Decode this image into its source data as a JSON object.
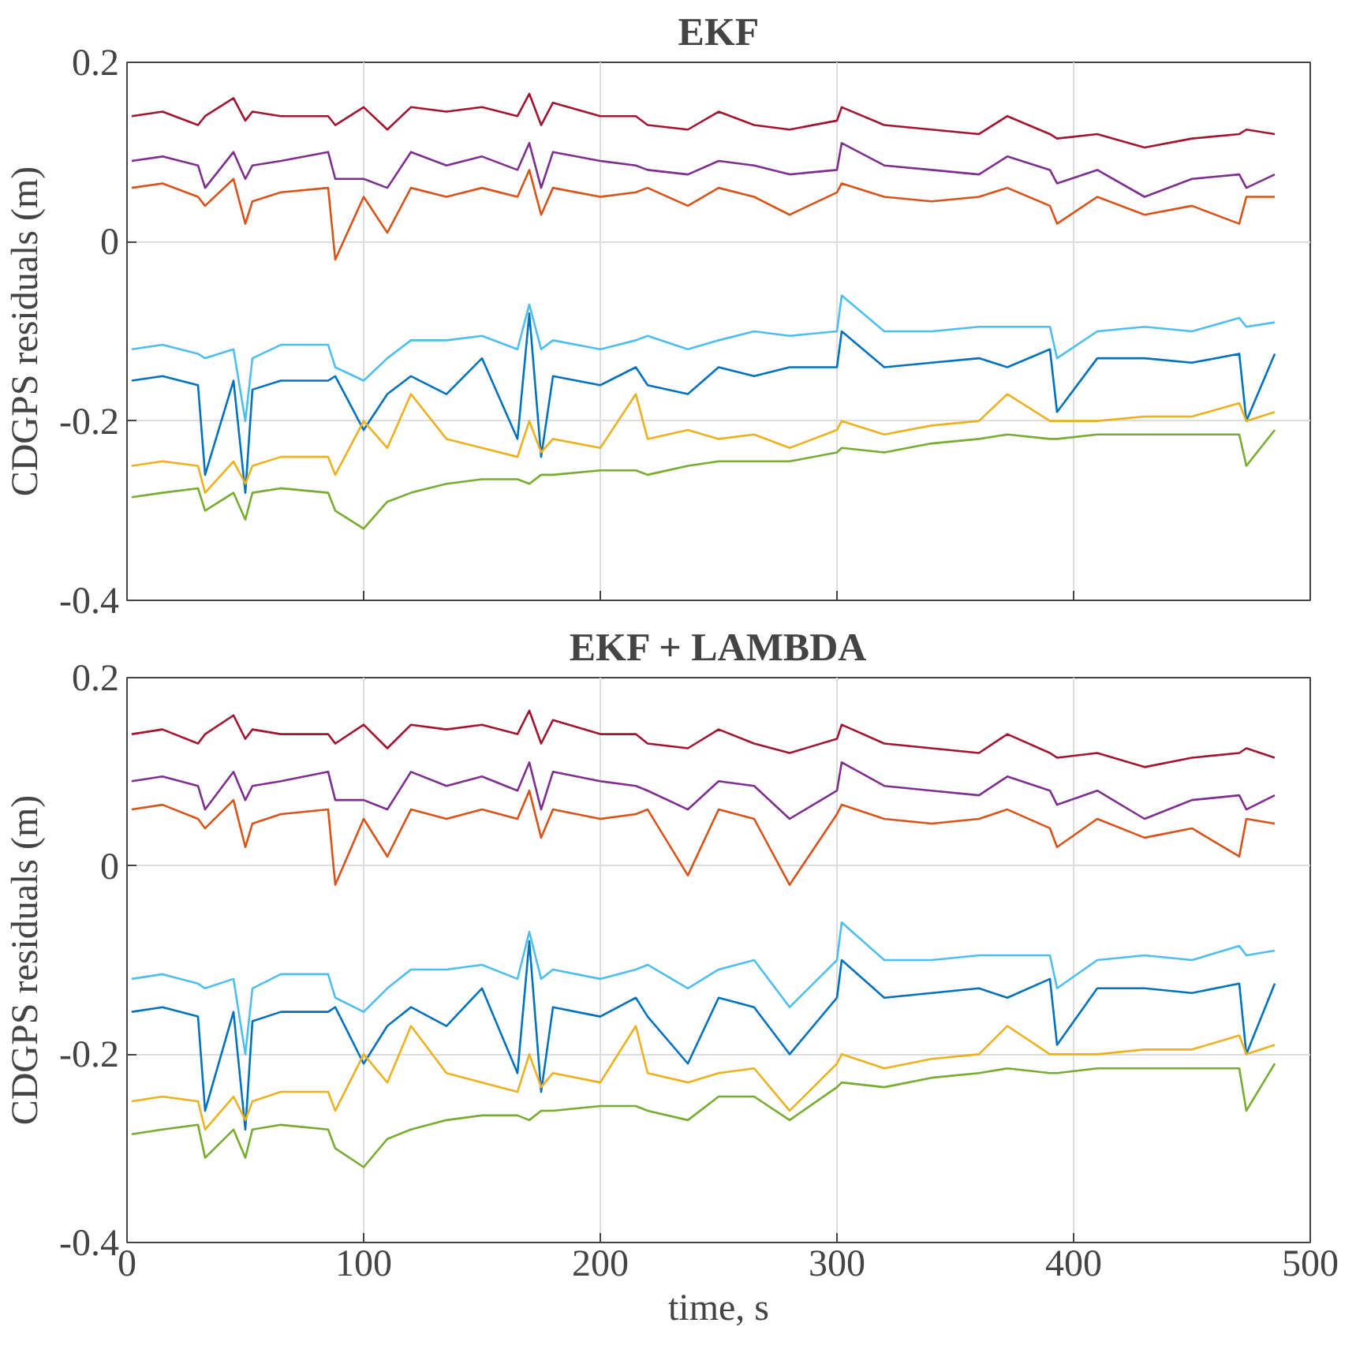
{
  "chart_data": [
    {
      "type": "line",
      "title": "EKF",
      "ylabel": "CDGPS residuals (m)",
      "xlim": [
        0,
        500
      ],
      "xticks": [
        0,
        100,
        200,
        300,
        400,
        500
      ],
      "ylim": [
        -0.4,
        0.2
      ],
      "yticks": [
        -0.4,
        -0.2,
        0,
        0.2
      ],
      "grid": true,
      "tick_labels": "y",
      "x": [
        2,
        15,
        30,
        33,
        45,
        50,
        53,
        65,
        85,
        88,
        100,
        110,
        120,
        135,
        150,
        165,
        170,
        175,
        180,
        200,
        215,
        220,
        237,
        250,
        265,
        280,
        300,
        302,
        320,
        340,
        360,
        372,
        390,
        393,
        410,
        430,
        450,
        470,
        473,
        485
      ],
      "series": [
        {
          "color": "#a2142f",
          "values": [
            0.14,
            0.145,
            0.13,
            0.14,
            0.16,
            0.135,
            0.145,
            0.14,
            0.14,
            0.13,
            0.15,
            0.125,
            0.15,
            0.145,
            0.15,
            0.14,
            0.165,
            0.13,
            0.155,
            0.14,
            0.14,
            0.13,
            0.125,
            0.145,
            0.13,
            0.125,
            0.135,
            0.15,
            0.13,
            0.125,
            0.12,
            0.14,
            0.12,
            0.115,
            0.12,
            0.105,
            0.115,
            0.12,
            0.125,
            0.12
          ]
        },
        {
          "color": "#7e2f8e",
          "values": [
            0.09,
            0.095,
            0.085,
            0.06,
            0.1,
            0.07,
            0.085,
            0.09,
            0.1,
            0.07,
            0.07,
            0.06,
            0.1,
            0.085,
            0.095,
            0.08,
            0.11,
            0.06,
            0.1,
            0.09,
            0.085,
            0.08,
            0.075,
            0.09,
            0.085,
            0.075,
            0.08,
            0.11,
            0.085,
            0.08,
            0.075,
            0.095,
            0.08,
            0.065,
            0.08,
            0.05,
            0.07,
            0.075,
            0.06,
            0.075
          ]
        },
        {
          "color": "#d95319",
          "values": [
            0.06,
            0.065,
            0.05,
            0.04,
            0.07,
            0.02,
            0.045,
            0.055,
            0.06,
            -0.02,
            0.05,
            0.01,
            0.06,
            0.05,
            0.06,
            0.05,
            0.08,
            0.03,
            0.06,
            0.05,
            0.055,
            0.06,
            0.04,
            0.06,
            0.05,
            0.03,
            0.055,
            0.065,
            0.05,
            0.045,
            0.05,
            0.06,
            0.04,
            0.02,
            0.05,
            0.03,
            0.04,
            0.02,
            0.05,
            0.05
          ]
        },
        {
          "color": "#4dbeee",
          "values": [
            -0.12,
            -0.115,
            -0.125,
            -0.13,
            -0.12,
            -0.2,
            -0.13,
            -0.115,
            -0.115,
            -0.14,
            -0.155,
            -0.13,
            -0.11,
            -0.11,
            -0.105,
            -0.12,
            -0.07,
            -0.12,
            -0.11,
            -0.12,
            -0.11,
            -0.105,
            -0.12,
            -0.11,
            -0.1,
            -0.105,
            -0.1,
            -0.06,
            -0.1,
            -0.1,
            -0.095,
            -0.095,
            -0.095,
            -0.13,
            -0.1,
            -0.095,
            -0.1,
            -0.085,
            -0.095,
            -0.09
          ]
        },
        {
          "color": "#0072bd",
          "values": [
            -0.155,
            -0.15,
            -0.16,
            -0.26,
            -0.155,
            -0.28,
            -0.165,
            -0.155,
            -0.155,
            -0.15,
            -0.21,
            -0.17,
            -0.15,
            -0.17,
            -0.13,
            -0.22,
            -0.08,
            -0.24,
            -0.15,
            -0.16,
            -0.14,
            -0.16,
            -0.17,
            -0.14,
            -0.15,
            -0.14,
            -0.14,
            -0.1,
            -0.14,
            -0.135,
            -0.13,
            -0.14,
            -0.12,
            -0.19,
            -0.13,
            -0.13,
            -0.135,
            -0.125,
            -0.2,
            -0.125
          ]
        },
        {
          "color": "#edb120",
          "values": [
            -0.25,
            -0.245,
            -0.25,
            -0.28,
            -0.245,
            -0.27,
            -0.25,
            -0.24,
            -0.24,
            -0.26,
            -0.2,
            -0.23,
            -0.17,
            -0.22,
            -0.23,
            -0.24,
            -0.2,
            -0.235,
            -0.22,
            -0.23,
            -0.17,
            -0.22,
            -0.21,
            -0.22,
            -0.215,
            -0.23,
            -0.21,
            -0.2,
            -0.215,
            -0.205,
            -0.2,
            -0.17,
            -0.2,
            -0.2,
            -0.2,
            -0.195,
            -0.195,
            -0.18,
            -0.2,
            -0.19
          ]
        },
        {
          "color": "#77ac30",
          "values": [
            -0.285,
            -0.28,
            -0.275,
            -0.3,
            -0.28,
            -0.31,
            -0.28,
            -0.275,
            -0.28,
            -0.3,
            -0.32,
            -0.29,
            -0.28,
            -0.27,
            -0.265,
            -0.265,
            -0.27,
            -0.26,
            -0.26,
            -0.255,
            -0.255,
            -0.26,
            -0.25,
            -0.245,
            -0.245,
            -0.245,
            -0.235,
            -0.23,
            -0.235,
            -0.225,
            -0.22,
            -0.215,
            -0.22,
            -0.22,
            -0.215,
            -0.215,
            -0.215,
            -0.215,
            -0.25,
            -0.21
          ]
        }
      ]
    },
    {
      "type": "line",
      "title": "EKF + LAMBDA",
      "ylabel": "CDGPS residuals (m)",
      "xlabel": "time, s",
      "xlim": [
        0,
        500
      ],
      "xticks": [
        0,
        100,
        200,
        300,
        400,
        500
      ],
      "ylim": [
        -0.4,
        0.2
      ],
      "yticks": [
        -0.4,
        -0.2,
        0,
        0.2
      ],
      "grid": true,
      "x": [
        2,
        15,
        30,
        33,
        45,
        50,
        53,
        65,
        85,
        88,
        100,
        110,
        120,
        135,
        150,
        165,
        170,
        175,
        180,
        200,
        215,
        220,
        237,
        250,
        265,
        280,
        300,
        302,
        320,
        340,
        360,
        372,
        390,
        393,
        410,
        430,
        450,
        470,
        473,
        485
      ],
      "series": [
        {
          "color": "#a2142f",
          "values": [
            0.14,
            0.145,
            0.13,
            0.14,
            0.16,
            0.135,
            0.145,
            0.14,
            0.14,
            0.13,
            0.15,
            0.125,
            0.15,
            0.145,
            0.15,
            0.14,
            0.165,
            0.13,
            0.155,
            0.14,
            0.14,
            0.13,
            0.125,
            0.145,
            0.13,
            0.12,
            0.135,
            0.15,
            0.13,
            0.125,
            0.12,
            0.14,
            0.12,
            0.115,
            0.12,
            0.105,
            0.115,
            0.12,
            0.125,
            0.115
          ]
        },
        {
          "color": "#7e2f8e",
          "values": [
            0.09,
            0.095,
            0.085,
            0.06,
            0.1,
            0.07,
            0.085,
            0.09,
            0.1,
            0.07,
            0.07,
            0.06,
            0.1,
            0.085,
            0.095,
            0.08,
            0.11,
            0.06,
            0.1,
            0.09,
            0.085,
            0.08,
            0.06,
            0.09,
            0.085,
            0.05,
            0.08,
            0.11,
            0.085,
            0.08,
            0.075,
            0.095,
            0.08,
            0.065,
            0.08,
            0.05,
            0.07,
            0.075,
            0.06,
            0.075
          ]
        },
        {
          "color": "#d95319",
          "values": [
            0.06,
            0.065,
            0.05,
            0.04,
            0.07,
            0.02,
            0.045,
            0.055,
            0.06,
            -0.02,
            0.05,
            0.01,
            0.06,
            0.05,
            0.06,
            0.05,
            0.08,
            0.03,
            0.06,
            0.05,
            0.055,
            0.06,
            -0.01,
            0.06,
            0.05,
            -0.02,
            0.055,
            0.065,
            0.05,
            0.045,
            0.05,
            0.06,
            0.04,
            0.02,
            0.05,
            0.03,
            0.04,
            0.01,
            0.05,
            0.045
          ]
        },
        {
          "color": "#4dbeee",
          "values": [
            -0.12,
            -0.115,
            -0.125,
            -0.13,
            -0.12,
            -0.2,
            -0.13,
            -0.115,
            -0.115,
            -0.14,
            -0.155,
            -0.13,
            -0.11,
            -0.11,
            -0.105,
            -0.12,
            -0.07,
            -0.12,
            -0.11,
            -0.12,
            -0.11,
            -0.105,
            -0.13,
            -0.11,
            -0.1,
            -0.15,
            -0.1,
            -0.06,
            -0.1,
            -0.1,
            -0.095,
            -0.095,
            -0.095,
            -0.13,
            -0.1,
            -0.095,
            -0.1,
            -0.085,
            -0.095,
            -0.09
          ]
        },
        {
          "color": "#0072bd",
          "values": [
            -0.155,
            -0.15,
            -0.16,
            -0.26,
            -0.155,
            -0.28,
            -0.165,
            -0.155,
            -0.155,
            -0.15,
            -0.21,
            -0.17,
            -0.15,
            -0.17,
            -0.13,
            -0.22,
            -0.08,
            -0.24,
            -0.15,
            -0.16,
            -0.14,
            -0.16,
            -0.21,
            -0.14,
            -0.15,
            -0.2,
            -0.14,
            -0.1,
            -0.14,
            -0.135,
            -0.13,
            -0.14,
            -0.12,
            -0.19,
            -0.13,
            -0.13,
            -0.135,
            -0.125,
            -0.2,
            -0.125
          ]
        },
        {
          "color": "#edb120",
          "values": [
            -0.25,
            -0.245,
            -0.25,
            -0.28,
            -0.245,
            -0.27,
            -0.25,
            -0.24,
            -0.24,
            -0.26,
            -0.2,
            -0.23,
            -0.17,
            -0.22,
            -0.23,
            -0.24,
            -0.2,
            -0.235,
            -0.22,
            -0.23,
            -0.17,
            -0.22,
            -0.23,
            -0.22,
            -0.215,
            -0.26,
            -0.21,
            -0.2,
            -0.215,
            -0.205,
            -0.2,
            -0.17,
            -0.2,
            -0.2,
            -0.2,
            -0.195,
            -0.195,
            -0.18,
            -0.2,
            -0.19
          ]
        },
        {
          "color": "#77ac30",
          "values": [
            -0.285,
            -0.28,
            -0.275,
            -0.31,
            -0.28,
            -0.31,
            -0.28,
            -0.275,
            -0.28,
            -0.3,
            -0.32,
            -0.29,
            -0.28,
            -0.27,
            -0.265,
            -0.265,
            -0.27,
            -0.26,
            -0.26,
            -0.255,
            -0.255,
            -0.26,
            -0.27,
            -0.245,
            -0.245,
            -0.27,
            -0.235,
            -0.23,
            -0.235,
            -0.225,
            -0.22,
            -0.215,
            -0.22,
            -0.22,
            -0.215,
            -0.215,
            -0.215,
            -0.215,
            -0.26,
            -0.21
          ]
        }
      ]
    }
  ]
}
